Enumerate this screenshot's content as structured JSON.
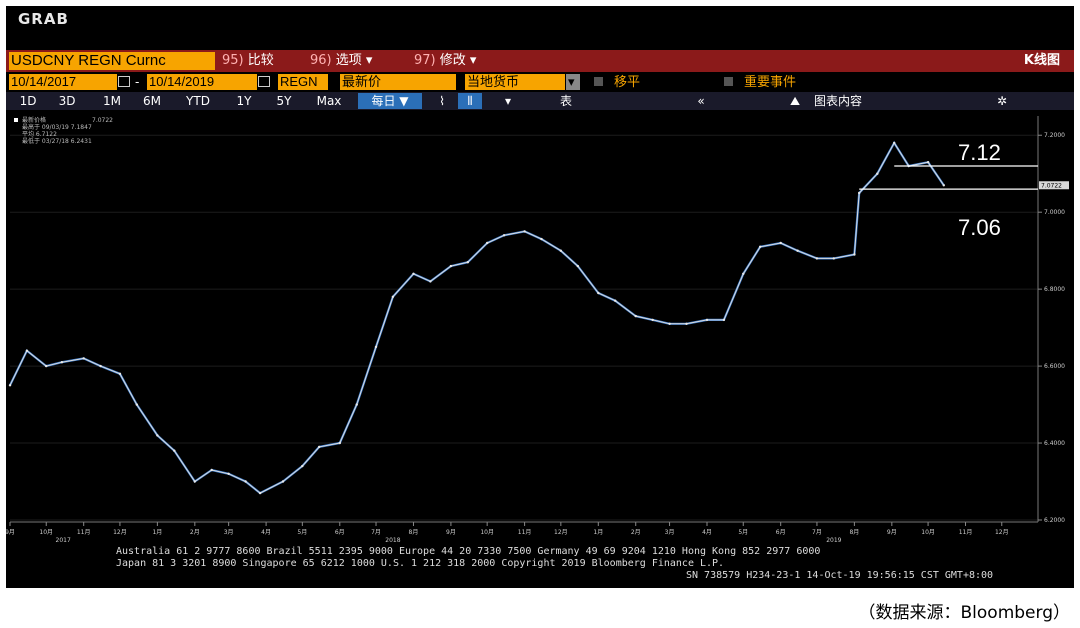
{
  "window": {
    "title": "GRAB"
  },
  "toolbar": {
    "ticker": "USDCNY REGN Curnc",
    "menu": [
      {
        "num": "95)",
        "label": "比较"
      },
      {
        "num": "96)",
        "label": "选项 ▾"
      },
      {
        "num": "97)",
        "label": "修改 ▾"
      }
    ],
    "chart_title": "K线图"
  },
  "range": {
    "start": "10/14/2017",
    "dash": "-",
    "end": "10/14/2019",
    "source": "REGN",
    "field": "最新价",
    "currency": "当地货币",
    "move_avg": "移平",
    "events": "重要事件"
  },
  "periods": {
    "items": [
      "1D",
      "3D",
      "1M",
      "6M",
      "YTD",
      "1Y",
      "5Y",
      "Max"
    ],
    "frequency": "每日 ▼",
    "table": "表",
    "chart_content": "图表内容",
    "collapse": "«",
    "settings": "✲"
  },
  "legend": {
    "rows": [
      "最新价格",
      "最高于 09/03/19 7.1847",
      "平均 6.7122",
      "最低于 03/27/18 6.2431"
    ],
    "last": "7.0722"
  },
  "annotations": {
    "upper": "7.12",
    "lower": "7.06"
  },
  "footer": {
    "line1": "Australia 61 2 9777 8600 Brazil 5511 2395 9000 Europe 44 20 7330 7500 Germany 49 69 9204 1210 Hong Kong 852 2977 6000",
    "line2": "Japan 81 3 3201 8900       Singapore 65 6212 1000      U.S. 1 212 318 2000            Copyright 2019 Bloomberg Finance L.P.",
    "line3": "SN 738579 H234-23-1 14-Oct-19 19:56:15 CST  GMT+8:00"
  },
  "source_note": "（数据来源：Bloomberg）",
  "chart_data": {
    "type": "line",
    "title": "",
    "ylim": [
      6.2,
      7.25
    ],
    "y_ticks": [
      "7.2000",
      "7.0000",
      "6.8000",
      "6.6000",
      "6.4000",
      "6.2000"
    ],
    "last_price_label": "7.0722",
    "x_month_labels": [
      "9月",
      "10月",
      "11月",
      "12月",
      "1月",
      "2月",
      "3月",
      "4月",
      "5月",
      "6月",
      "7月",
      "8月",
      "9月",
      "10月",
      "11月",
      "12月",
      "1月",
      "2月",
      "3月",
      "4月",
      "5月",
      "6月",
      "7月",
      "8月",
      "9月",
      "10月",
      "11月",
      "12月"
    ],
    "x_year_labels": [
      "2017",
      "2018",
      "2019"
    ],
    "series": [
      {
        "x": [
          "2017-09-01",
          "2017-09-15",
          "2017-10-01",
          "2017-10-14",
          "2017-11-01",
          "2017-11-15",
          "2017-12-01",
          "2017-12-15",
          "2018-01-01",
          "2018-01-15",
          "2018-02-01",
          "2018-02-15",
          "2018-03-01",
          "2018-03-15",
          "2018-03-27",
          "2018-04-15",
          "2018-05-01",
          "2018-05-15",
          "2018-06-01",
          "2018-06-15",
          "2018-07-01",
          "2018-07-15",
          "2018-08-01",
          "2018-08-15",
          "2018-09-01",
          "2018-09-15",
          "2018-10-01",
          "2018-10-15",
          "2018-11-01",
          "2018-11-15",
          "2018-12-01",
          "2018-12-15",
          "2019-01-01",
          "2019-01-15",
          "2019-02-01",
          "2019-02-15",
          "2019-03-01",
          "2019-03-15",
          "2019-04-01",
          "2019-04-15",
          "2019-05-01",
          "2019-05-15",
          "2019-06-01",
          "2019-06-15",
          "2019-07-01",
          "2019-07-15",
          "2019-08-01",
          "2019-08-05",
          "2019-08-20",
          "2019-09-03",
          "2019-09-15",
          "2019-10-01",
          "2019-10-14"
        ],
        "y": [
          6.55,
          6.64,
          6.6,
          6.61,
          6.62,
          6.6,
          6.58,
          6.5,
          6.42,
          6.38,
          6.3,
          6.33,
          6.32,
          6.3,
          6.27,
          6.3,
          6.34,
          6.39,
          6.4,
          6.5,
          6.65,
          6.78,
          6.84,
          6.82,
          6.86,
          6.87,
          6.92,
          6.94,
          6.95,
          6.93,
          6.9,
          6.86,
          6.79,
          6.77,
          6.73,
          6.72,
          6.71,
          6.71,
          6.72,
          6.72,
          6.84,
          6.91,
          6.92,
          6.9,
          6.88,
          6.88,
          6.89,
          7.05,
          7.1,
          7.18,
          7.12,
          7.13,
          7.07
        ]
      }
    ]
  }
}
